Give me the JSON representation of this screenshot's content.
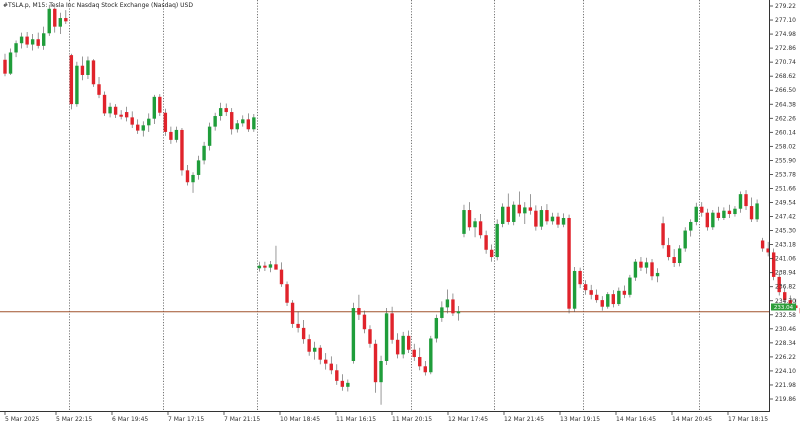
{
  "chart_data": {
    "type": "candlestick",
    "title": "#TSLA.p, M15:  Tesla Inc Nasdaq Stock Exchange (Nasdaq) USD",
    "ylim": [
      218.8,
      279.6
    ],
    "y_ticks": [
      "279.22",
      "277.10",
      "274.98",
      "272.86",
      "270.74",
      "268.62",
      "266.50",
      "264.38",
      "262.26",
      "260.14",
      "258.02",
      "255.90",
      "253.78",
      "251.66",
      "249.54",
      "247.42",
      "245.30",
      "243.18",
      "241.06",
      "238.94",
      "236.82",
      "234.70",
      "232.58",
      "230.46",
      "228.34",
      "226.22",
      "224.10",
      "221.98",
      "219.86"
    ],
    "x_ticks": [
      "5 Mar 2025",
      "5 Mar 22:15",
      "6 Mar 19:45",
      "7 Mar 17:15",
      "7 Mar 21:15",
      "10 Mar 18:45",
      "11 Mar 16:15",
      "11 Mar 20:15",
      "12 Mar 17:45",
      "12 Mar 21:45",
      "13 Mar 19:15",
      "14 Mar 16:45",
      "14 Mar 20:45",
      "17 Mar 18:15"
    ],
    "session_breaks": [
      1,
      3,
      5,
      7,
      9,
      11,
      13
    ],
    "current_price": "233.04",
    "current_value": 233.04,
    "colors": {
      "up": "#1f9d3a",
      "down": "#e0232b",
      "grid": "#555555",
      "price_line": "#a0522d",
      "badge": "#2e9e3a"
    },
    "candles": [
      [
        271.1,
        272.0,
        268.6,
        269.0
      ],
      [
        269.0,
        272.8,
        268.8,
        272.2
      ],
      [
        272.2,
        274.0,
        271.5,
        273.6
      ],
      [
        273.6,
        275.2,
        272.8,
        274.6
      ],
      [
        274.6,
        275.3,
        272.9,
        273.4
      ],
      [
        273.4,
        275.0,
        272.5,
        274.2
      ],
      [
        274.2,
        275.2,
        272.8,
        273.2
      ],
      [
        273.2,
        276.1,
        272.6,
        275.1
      ],
      [
        275.1,
        279.4,
        274.7,
        278.8
      ],
      [
        278.8,
        279.0,
        275.2,
        276.1
      ],
      [
        276.1,
        278.2,
        275.0,
        277.4
      ],
      [
        277.4,
        278.6,
        276.5,
        276.9
      ],
      [
        271.8,
        272.0,
        263.6,
        264.4
      ],
      [
        264.4,
        270.8,
        264.0,
        270.2
      ],
      [
        270.2,
        271.6,
        268.0,
        268.8
      ],
      [
        268.8,
        271.6,
        268.2,
        271.0
      ],
      [
        271.0,
        271.2,
        267.0,
        267.4
      ],
      [
        267.4,
        268.5,
        265.3,
        265.8
      ],
      [
        265.8,
        266.3,
        262.6,
        263.0
      ],
      [
        263.0,
        264.6,
        262.4,
        264.0
      ],
      [
        264.0,
        264.4,
        262.3,
        262.8
      ],
      [
        262.8,
        263.5,
        262.1,
        262.5
      ],
      [
        263.2,
        264.0,
        261.8,
        262.4
      ],
      [
        262.4,
        263.3,
        260.8,
        261.3
      ],
      [
        261.3,
        262.1,
        259.9,
        260.4
      ],
      [
        260.4,
        261.8,
        259.5,
        261.2
      ],
      [
        261.2,
        263.0,
        260.2,
        262.2
      ],
      [
        262.2,
        265.8,
        261.4,
        265.5
      ],
      [
        265.5,
        265.9,
        262.6,
        263.1
      ],
      [
        263.1,
        263.7,
        259.6,
        260.2
      ],
      [
        260.2,
        261.0,
        258.4,
        259.0
      ],
      [
        259.0,
        261.0,
        258.6,
        260.5
      ],
      [
        260.5,
        260.8,
        253.6,
        254.4
      ],
      [
        254.4,
        255.2,
        252.1,
        252.6
      ],
      [
        252.6,
        254.1,
        251.0,
        253.7
      ],
      [
        253.7,
        256.6,
        253.0,
        255.9
      ],
      [
        255.9,
        258.7,
        255.3,
        258.1
      ],
      [
        258.1,
        261.6,
        257.4,
        261.0
      ],
      [
        261.0,
        263.1,
        260.4,
        262.6
      ],
      [
        262.6,
        264.6,
        261.9,
        263.8
      ],
      [
        263.8,
        264.5,
        262.6,
        263.2
      ],
      [
        263.2,
        263.8,
        259.8,
        260.6
      ],
      [
        260.6,
        262.0,
        260.1,
        261.5
      ],
      [
        261.5,
        262.7,
        261.0,
        262.1
      ],
      [
        262.1,
        263.0,
        260.2,
        260.6
      ],
      [
        260.6,
        262.9,
        260.2,
        262.4
      ],
      [
        239.6,
        240.6,
        239.1,
        240.0
      ],
      [
        240.0,
        240.6,
        239.2,
        239.7
      ],
      [
        239.7,
        240.7,
        239.0,
        240.2
      ],
      [
        240.2,
        243.0,
        239.6,
        239.4
      ],
      [
        239.4,
        240.5,
        236.8,
        237.2
      ],
      [
        237.2,
        237.6,
        233.9,
        234.4
      ],
      [
        234.4,
        234.8,
        230.6,
        231.2
      ],
      [
        231.2,
        233.1,
        229.9,
        230.6
      ],
      [
        230.6,
        231.8,
        228.2,
        228.9
      ],
      [
        228.9,
        229.6,
        226.4,
        227.0
      ],
      [
        227.0,
        228.5,
        225.8,
        227.6
      ],
      [
        227.6,
        228.0,
        225.1,
        225.8
      ],
      [
        225.8,
        226.8,
        224.3,
        225.2
      ],
      [
        225.2,
        226.3,
        223.6,
        224.2
      ],
      [
        224.2,
        225.1,
        222.0,
        222.6
      ],
      [
        222.6,
        223.6,
        221.1,
        221.7
      ],
      [
        221.7,
        222.8,
        221.0,
        222.3
      ],
      [
        225.6,
        234.4,
        225.2,
        233.6
      ],
      [
        233.6,
        235.6,
        231.8,
        232.6
      ],
      [
        232.6,
        233.2,
        229.8,
        230.4
      ],
      [
        230.4,
        231.0,
        227.6,
        228.2
      ],
      [
        228.2,
        228.8,
        220.8,
        222.4
      ],
      [
        222.4,
        226.4,
        219.0,
        225.6
      ],
      [
        225.6,
        233.6,
        225.0,
        232.8
      ],
      [
        232.8,
        233.8,
        228.2,
        228.8
      ],
      [
        228.8,
        229.8,
        226.0,
        226.6
      ],
      [
        226.6,
        230.0,
        226.0,
        229.4
      ],
      [
        229.4,
        230.2,
        226.8,
        227.3
      ],
      [
        227.3,
        228.2,
        225.6,
        226.2
      ],
      [
        226.2,
        227.6,
        224.2,
        224.8
      ],
      [
        224.8,
        225.6,
        223.4,
        223.9
      ],
      [
        223.9,
        229.4,
        223.6,
        229.0
      ],
      [
        229.0,
        232.6,
        228.4,
        232.1
      ],
      [
        232.1,
        234.6,
        231.5,
        233.7
      ],
      [
        233.7,
        236.4,
        232.8,
        234.9
      ],
      [
        234.9,
        235.8,
        232.4,
        232.8
      ],
      [
        232.8,
        233.9,
        231.7,
        233.1
      ],
      [
        244.8,
        249.2,
        244.3,
        248.4
      ],
      [
        248.4,
        249.6,
        245.3,
        245.8
      ],
      [
        245.8,
        247.2,
        244.3,
        246.7
      ],
      [
        246.7,
        247.8,
        244.1,
        244.6
      ],
      [
        244.6,
        245.3,
        241.8,
        242.4
      ],
      [
        242.4,
        243.2,
        240.6,
        241.3
      ],
      [
        241.3,
        247.0,
        240.8,
        246.3
      ],
      [
        246.3,
        249.4,
        245.8,
        248.9
      ],
      [
        248.9,
        250.9,
        246.2,
        246.6
      ],
      [
        246.6,
        249.7,
        246.1,
        249.2
      ],
      [
        249.2,
        251.2,
        247.4,
        247.9
      ],
      [
        247.9,
        249.6,
        246.3,
        248.8
      ],
      [
        248.8,
        250.8,
        247.7,
        248.3
      ],
      [
        248.3,
        249.1,
        245.3,
        245.9
      ],
      [
        245.9,
        249.0,
        245.4,
        248.4
      ],
      [
        248.4,
        249.3,
        246.2,
        246.7
      ],
      [
        246.7,
        248.0,
        246.2,
        247.4
      ],
      [
        247.4,
        248.0,
        245.7,
        246.2
      ],
      [
        246.2,
        247.9,
        245.8,
        247.2
      ],
      [
        247.2,
        247.7,
        232.8,
        233.5
      ],
      [
        233.5,
        239.8,
        233.0,
        239.2
      ],
      [
        239.2,
        239.7,
        236.6,
        237.2
      ],
      [
        237.2,
        237.8,
        235.6,
        236.3
      ],
      [
        236.3,
        237.1,
        234.9,
        235.6
      ],
      [
        235.6,
        236.4,
        234.4,
        234.8
      ],
      [
        234.8,
        235.4,
        233.2,
        233.8
      ],
      [
        233.8,
        236.0,
        233.5,
        235.7
      ],
      [
        235.7,
        236.3,
        233.7,
        234.2
      ],
      [
        234.2,
        236.7,
        233.9,
        236.2
      ],
      [
        236.2,
        237.0,
        235.1,
        235.6
      ],
      [
        235.6,
        238.6,
        235.2,
        238.2
      ],
      [
        238.2,
        241.0,
        237.7,
        240.6
      ],
      [
        240.6,
        241.3,
        239.2,
        239.7
      ],
      [
        239.7,
        241.2,
        238.8,
        240.5
      ],
      [
        240.5,
        241.0,
        237.8,
        238.4
      ],
      [
        238.4,
        239.6,
        237.5,
        238.9
      ],
      [
        246.4,
        247.4,
        242.6,
        243.1
      ],
      [
        243.1,
        244.2,
        240.8,
        241.3
      ],
      [
        241.3,
        242.5,
        239.8,
        240.4
      ],
      [
        240.4,
        243.1,
        239.9,
        242.6
      ],
      [
        242.6,
        245.8,
        242.1,
        245.3
      ],
      [
        245.3,
        247.0,
        244.4,
        246.6
      ],
      [
        246.6,
        249.5,
        246.1,
        248.9
      ],
      [
        248.9,
        249.6,
        247.4,
        248.0
      ],
      [
        248.0,
        248.6,
        245.3,
        245.8
      ],
      [
        245.8,
        248.4,
        245.4,
        248.0
      ],
      [
        248.0,
        248.9,
        246.8,
        247.2
      ],
      [
        247.2,
        248.8,
        246.9,
        248.3
      ],
      [
        248.3,
        249.2,
        247.2,
        247.8
      ],
      [
        247.8,
        249.0,
        247.4,
        248.6
      ],
      [
        248.6,
        251.2,
        248.0,
        250.8
      ],
      [
        250.8,
        251.4,
        248.4,
        249.0
      ],
      [
        249.0,
        250.3,
        246.6,
        247.0
      ],
      [
        247.0,
        250.0,
        246.6,
        249.4
      ],
      [
        243.8,
        244.2,
        242.1,
        242.6
      ],
      [
        242.6,
        243.6,
        241.4,
        242.0
      ],
      [
        242.0,
        242.6,
        237.8,
        238.3
      ],
      [
        238.3,
        239.2,
        235.5,
        236.0
      ],
      [
        236.0,
        236.7,
        234.3,
        234.8
      ],
      [
        234.8,
        235.5,
        233.6,
        234.0
      ],
      [
        234.0,
        235.0,
        233.2,
        233.6
      ],
      [
        233.6,
        234.4,
        232.4,
        232.8
      ],
      [
        232.8,
        234.0,
        232.6,
        233.4
      ],
      [
        233.4,
        233.8,
        232.6,
        233.0
      ]
    ]
  }
}
